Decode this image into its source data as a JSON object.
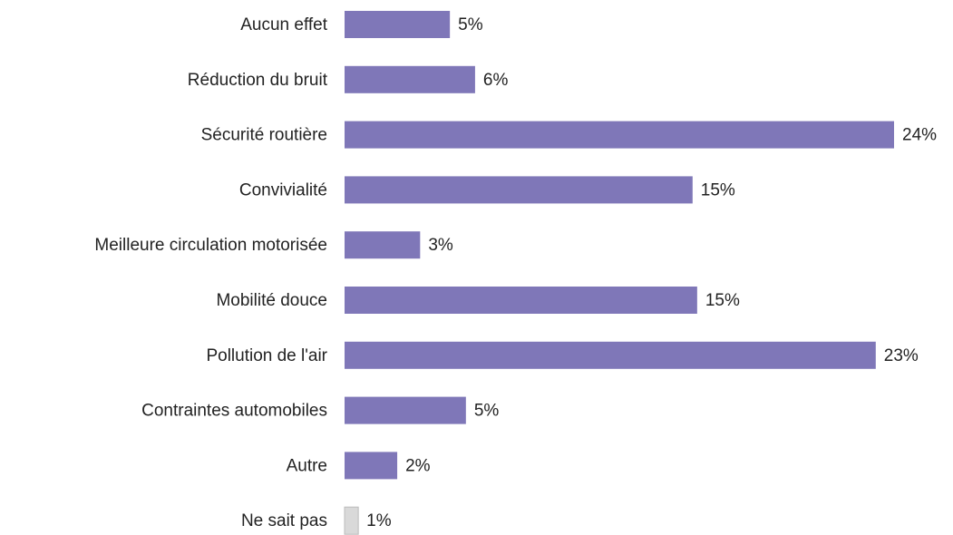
{
  "chart_data": {
    "type": "bar",
    "orientation": "horizontal",
    "categories": [
      "Aucun effet",
      "Réduction du bruit",
      "Sécurité routière",
      "Convivialité",
      "Meilleure circulation motorisée",
      "Mobilité douce",
      "Pollution de l'air",
      "Contraintes automobiles",
      "Autre",
      "Ne sait pas"
    ],
    "values": [
      4.6,
      5.7,
      24,
      15.2,
      3.3,
      15.4,
      23.2,
      5.3,
      2.3,
      0.6
    ],
    "value_labels": [
      "5%",
      "6%",
      "24%",
      "15%",
      "3%",
      "15%",
      "23%",
      "5%",
      "2%",
      "1%"
    ],
    "colors": [
      "#7f77b8",
      "#7f77b8",
      "#7f77b8",
      "#7f77b8",
      "#7f77b8",
      "#7f77b8",
      "#7f77b8",
      "#7f77b8",
      "#7f77b8",
      "#d9d9d9"
    ]
  }
}
